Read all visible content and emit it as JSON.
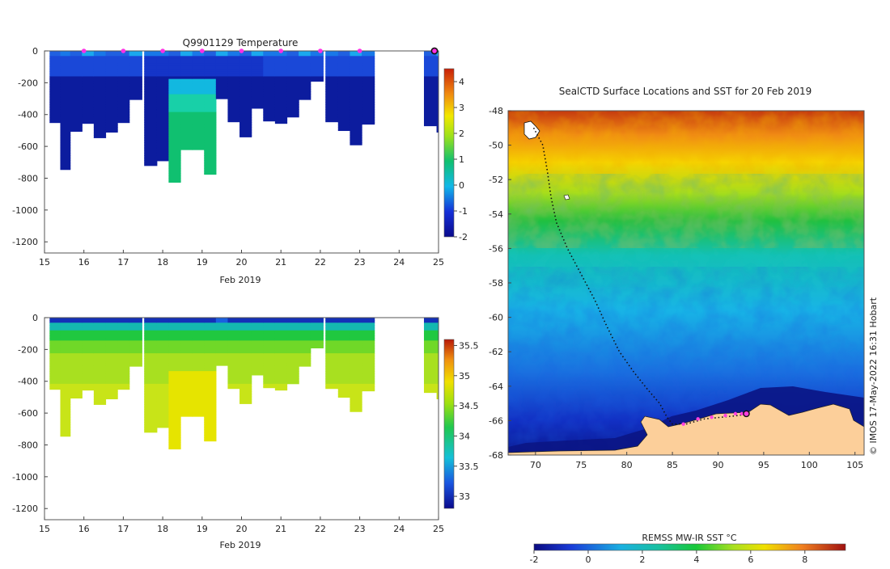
{
  "chart_data": [
    {
      "type": "heatmap",
      "title": "Q9901129  Temperature",
      "xlabel": "Feb 2019",
      "ylabel": "",
      "xlim": [
        15,
        25
      ],
      "ylim": [
        -1270,
        0
      ],
      "x_ticks": [
        "15",
        "16",
        "17",
        "18",
        "19",
        "20",
        "21",
        "22",
        "23",
        "24",
        "25"
      ],
      "y_ticks": [
        "0",
        "-200",
        "-400",
        "-600",
        "-800",
        "-1000",
        "-1200"
      ],
      "colorbar": {
        "min": -2,
        "max": 4.5,
        "ticks": [
          "4",
          "3",
          "2",
          "1",
          "0",
          "-1",
          "-2"
        ]
      },
      "profile_days": [
        15.3,
        15.5,
        15.8,
        16.1,
        16.4,
        16.7,
        17.0,
        17.3,
        17.7,
        18.0,
        18.3,
        18.6,
        18.9,
        19.2,
        19.5,
        19.8,
        20.1,
        20.4,
        20.7,
        21.0,
        21.3,
        21.6,
        21.9,
        22.3,
        22.6,
        22.9,
        23.2,
        24.8,
        25.1
      ],
      "profile_max_depth": [
        -450,
        -745,
        -505,
        -455,
        -545,
        -510,
        -450,
        -305,
        -720,
        -690,
        -825,
        -620,
        -620,
        -775,
        -300,
        -445,
        -540,
        -360,
        -440,
        -455,
        -415,
        -305,
        -190,
        -445,
        -500,
        -590,
        -460,
        -470,
        -510
      ],
      "surface_markers_day": [
        16,
        17,
        18,
        19,
        20,
        21,
        22,
        23
      ],
      "current_marker_day": 25
    },
    {
      "type": "heatmap",
      "title": "",
      "xlabel": "Feb 2019",
      "ylabel": "",
      "xlim": [
        15,
        25
      ],
      "ylim": [
        -1270,
        0
      ],
      "x_ticks": [
        "15",
        "16",
        "17",
        "18",
        "19",
        "20",
        "21",
        "22",
        "23",
        "24",
        "25"
      ],
      "y_ticks": [
        "0",
        "-200",
        "-400",
        "-600",
        "-800",
        "-1000",
        "-1200"
      ],
      "colorbar": {
        "min": 32.8,
        "max": 35.6,
        "ticks": [
          "35.5",
          "35",
          "34.5",
          "34",
          "33.5",
          "33"
        ]
      },
      "profile_days": [
        15.3,
        15.5,
        15.8,
        16.1,
        16.4,
        16.7,
        17.0,
        17.3,
        17.7,
        18.0,
        18.3,
        18.6,
        18.9,
        19.2,
        19.5,
        19.8,
        20.1,
        20.4,
        20.7,
        21.0,
        21.3,
        21.6,
        21.9,
        22.3,
        22.6,
        22.9,
        23.2,
        24.8,
        25.1
      ],
      "profile_max_depth": [
        -450,
        -745,
        -505,
        -455,
        -545,
        -510,
        -450,
        -305,
        -720,
        -690,
        -825,
        -620,
        -620,
        -775,
        -300,
        -445,
        -540,
        -360,
        -440,
        -455,
        -415,
        -305,
        -190,
        -445,
        -500,
        -590,
        -460,
        -470,
        -510
      ]
    },
    {
      "type": "map",
      "title": "SealCTD Surface Locations and SST for 20 Feb 2019",
      "xlim": [
        67,
        106
      ],
      "ylim": [
        -68,
        -48
      ],
      "x_ticks": [
        "70",
        "75",
        "80",
        "85",
        "90",
        "95",
        "100",
        "105"
      ],
      "y_ticks": [
        "-48",
        "-50",
        "-52",
        "-54",
        "-56",
        "-58",
        "-60",
        "-62",
        "-64",
        "-66",
        "-68"
      ],
      "track": [
        [
          69.8,
          -49.0
        ],
        [
          70.8,
          -50.0
        ],
        [
          71.3,
          -51.5
        ],
        [
          71.7,
          -53.0
        ],
        [
          72.3,
          -54.5
        ],
        [
          73.5,
          -56.0
        ],
        [
          75.0,
          -57.5
        ],
        [
          76.5,
          -59.0
        ],
        [
          77.8,
          -60.5
        ],
        [
          79.2,
          -62.0
        ],
        [
          80.8,
          -63.2
        ],
        [
          82.3,
          -64.2
        ],
        [
          83.6,
          -65.0
        ],
        [
          84.4,
          -65.8
        ],
        [
          85.0,
          -66.2
        ],
        [
          86.5,
          -66.2
        ],
        [
          88.5,
          -65.9
        ],
        [
          90.5,
          -65.8
        ],
        [
          92.3,
          -65.7
        ],
        [
          93.1,
          -65.6
        ]
      ],
      "recent_positions": [
        [
          86.2,
          -66.2
        ],
        [
          87.8,
          -65.9
        ],
        [
          89.3,
          -65.8
        ],
        [
          90.8,
          -65.7
        ],
        [
          91.9,
          -65.6
        ],
        [
          92.6,
          -65.6
        ]
      ],
      "current_position": [
        93.1,
        -65.6
      ],
      "colorbar": {
        "label": "REMSS MW-IR SST °C",
        "min": -2,
        "max": 9.5,
        "ticks": [
          "-2",
          "0",
          "2",
          "4",
          "6",
          "8"
        ]
      },
      "credit": "© IMOS 17-May-2022 16:31 Hobart"
    }
  ]
}
